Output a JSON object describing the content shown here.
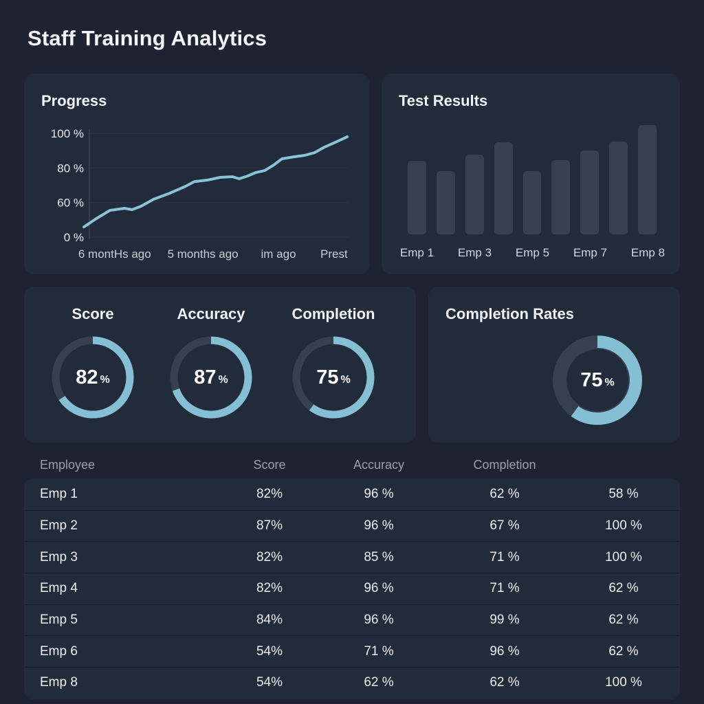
{
  "title": "Staff Training Analytics",
  "colors": {
    "page_bg": "#1d2330",
    "card_bg": "#222b39",
    "accent_blue": "#84bfd4",
    "line_blue": "#89c3d6",
    "track_gray": "#36404f",
    "grid_line": "#2b3443",
    "muted_text": "#97a0ab"
  },
  "chart_data": {
    "progress": {
      "type": "line",
      "title": "Progress",
      "y_ticks": [
        "100 %",
        "80 %",
        "60 %",
        "0 %"
      ],
      "x_labels": [
        {
          "text": "6 montHs ago",
          "x_pct": 11.7
        },
        {
          "text": "5 months ago",
          "x_pct": 45.2
        },
        {
          "text": "im ago",
          "x_pct": 73.9
        },
        {
          "text": "Prest",
          "x_pct": 95.0
        }
      ],
      "grid": true,
      "points": [
        [
          0,
          9.9
        ],
        [
          4.7,
          17.9
        ],
        [
          9.9,
          25.8
        ],
        [
          15.4,
          27.8
        ],
        [
          18.3,
          26.5
        ],
        [
          21.7,
          29.8
        ],
        [
          26.4,
          36.4
        ],
        [
          32.6,
          42.4
        ],
        [
          38.6,
          49.0
        ],
        [
          42.0,
          53.6
        ],
        [
          47.0,
          55.0
        ],
        [
          51.7,
          57.6
        ],
        [
          56.4,
          58.3
        ],
        [
          59.0,
          56.3
        ],
        [
          62.1,
          58.9
        ],
        [
          65.3,
          62.3
        ],
        [
          68.7,
          64.2
        ],
        [
          72.1,
          69.5
        ],
        [
          75.2,
          75.5
        ],
        [
          79.9,
          77.5
        ],
        [
          83.8,
          78.8
        ],
        [
          87.7,
          81.5
        ],
        [
          91.4,
          86.8
        ],
        [
          96.1,
          92.1
        ],
        [
          100,
          96.7
        ]
      ]
    },
    "test_results": {
      "type": "bar",
      "title": "Test Results",
      "values": [
        67,
        58,
        73,
        84,
        58,
        68,
        77,
        85,
        100
      ],
      "labels": [
        "Emp 1",
        null,
        "Emp 3",
        null,
        "Emp 5",
        null,
        "Emp 7",
        null,
        "Emp 8"
      ],
      "ylim": [
        0,
        100
      ]
    },
    "gauges": {
      "type": "donut-group",
      "items": [
        {
          "label": "Score",
          "value": 82,
          "unit": "%"
        },
        {
          "label": "Accuracy",
          "value": 87,
          "unit": "%"
        },
        {
          "label": "Completion",
          "value": 75,
          "unit": "%"
        }
      ]
    },
    "completion_rates": {
      "type": "donut",
      "title": "Completion Rates",
      "value": 75,
      "unit": "%"
    }
  },
  "table": {
    "headers": [
      "Employee",
      "Score",
      "Accuracy",
      "Completion",
      ""
    ],
    "rows": [
      [
        "Emp 1",
        "82%",
        "96 %",
        "62 %",
        "58 %"
      ],
      [
        "Emp 2",
        "87%",
        "96 %",
        "67 %",
        "100 %"
      ],
      [
        "Emp 3",
        "82%",
        "85 %",
        "71 %",
        "100 %"
      ],
      [
        "Emp 4",
        "82%",
        "96 %",
        "71 %",
        "62 %"
      ],
      [
        "Emp 5",
        "84%",
        "96 %",
        "99 %",
        "62 %"
      ],
      [
        "Emp 6",
        "54%",
        "71 %",
        "96 %",
        "62 %"
      ],
      [
        "Emp 8",
        "54%",
        "62 %",
        "62 %",
        "100 %"
      ]
    ]
  }
}
